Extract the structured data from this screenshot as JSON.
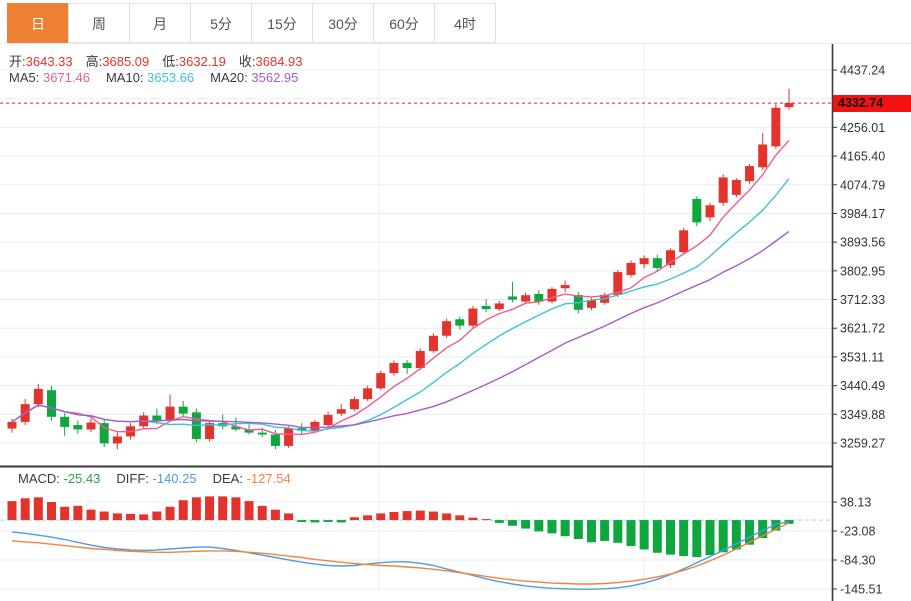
{
  "toolbar": {
    "tabs": [
      {
        "label": "日",
        "active": true
      },
      {
        "label": "周",
        "active": false
      },
      {
        "label": "月",
        "active": false
      },
      {
        "label": "5分",
        "active": false
      },
      {
        "label": "15分",
        "active": false
      },
      {
        "label": "30分",
        "active": false
      },
      {
        "label": "60分",
        "active": false
      },
      {
        "label": "4时",
        "active": false
      }
    ]
  },
  "legend": {
    "ohlc": [
      {
        "label": "开:",
        "value": "3643.33"
      },
      {
        "label": "高:",
        "value": "3685.09"
      },
      {
        "label": "低:",
        "value": "3632.19"
      },
      {
        "label": "收:",
        "value": "3684.93"
      }
    ],
    "ma": [
      {
        "label": "MA5:",
        "value": "3671.46"
      },
      {
        "label": "MA10:",
        "value": "3653.66"
      },
      {
        "label": "MA20:",
        "value": "3562.95"
      }
    ],
    "macd": [
      {
        "label": "MACD:",
        "value": "-25.43"
      },
      {
        "label": "DIFF:",
        "value": "-140.25"
      },
      {
        "label": "DEA:",
        "value": "-127.54"
      }
    ]
  },
  "price_axis": {
    "current_price": "4332.74",
    "ticks_labeled": [
      4437.24,
      4256.01,
      4165.4,
      4074.79,
      3984.17,
      3893.56,
      3802.95,
      3712.33,
      3621.72,
      3531.11,
      3440.49,
      3349.88,
      3259.27
    ],
    "ticks_grid_only": [
      4346.63
    ]
  },
  "macd_axis": {
    "ticks": [
      38.13,
      -23.08,
      -84.3,
      -145.51
    ]
  },
  "chart_data": {
    "type": "candlestick_with_macd",
    "main": {
      "note": "candles as [open, high, low, close], left to right; red = close>=open (CN convention), green = down",
      "ma_periods": [
        5,
        10,
        20
      ],
      "candles": [
        [
          3305,
          3336,
          3292,
          3326
        ],
        [
          3326,
          3398,
          3316,
          3382
        ],
        [
          3382,
          3446,
          3372,
          3430
        ],
        [
          3426,
          3440,
          3330,
          3342
        ],
        [
          3342,
          3354,
          3282,
          3310
        ],
        [
          3316,
          3330,
          3288,
          3302
        ],
        [
          3302,
          3336,
          3294,
          3324
        ],
        [
          3322,
          3332,
          3246,
          3258
        ],
        [
          3258,
          3292,
          3240,
          3280
        ],
        [
          3280,
          3322,
          3270,
          3312
        ],
        [
          3312,
          3356,
          3302,
          3346
        ],
        [
          3346,
          3368,
          3318,
          3330
        ],
        [
          3330,
          3412,
          3326,
          3374
        ],
        [
          3374,
          3392,
          3340,
          3352
        ],
        [
          3356,
          3368,
          3262,
          3272
        ],
        [
          3272,
          3332,
          3264,
          3322
        ],
        [
          3322,
          3350,
          3302,
          3312
        ],
        [
          3312,
          3340,
          3296,
          3302
        ],
        [
          3302,
          3318,
          3286,
          3292
        ],
        [
          3292,
          3308,
          3278,
          3286
        ],
        [
          3286,
          3300,
          3240,
          3250
        ],
        [
          3250,
          3312,
          3244,
          3306
        ],
        [
          3306,
          3322,
          3288,
          3298
        ],
        [
          3298,
          3332,
          3292,
          3326
        ],
        [
          3316,
          3358,
          3310,
          3348
        ],
        [
          3352,
          3382,
          3344,
          3366
        ],
        [
          3366,
          3406,
          3360,
          3398
        ],
        [
          3398,
          3440,
          3392,
          3432
        ],
        [
          3432,
          3488,
          3426,
          3480
        ],
        [
          3480,
          3520,
          3472,
          3512
        ],
        [
          3512,
          3522,
          3478,
          3496
        ],
        [
          3496,
          3558,
          3490,
          3550
        ],
        [
          3550,
          3606,
          3544,
          3598
        ],
        [
          3598,
          3652,
          3592,
          3644
        ],
        [
          3650,
          3658,
          3618,
          3630
        ],
        [
          3630,
          3692,
          3624,
          3684
        ],
        [
          3692,
          3714,
          3672,
          3682
        ],
        [
          3682,
          3708,
          3676,
          3700
        ],
        [
          3722,
          3768,
          3704,
          3712
        ],
        [
          3706,
          3734,
          3700,
          3726
        ],
        [
          3730,
          3742,
          3696,
          3706
        ],
        [
          3706,
          3752,
          3700,
          3746
        ],
        [
          3748,
          3772,
          3736,
          3758
        ],
        [
          3727,
          3736,
          3668,
          3680
        ],
        [
          3686,
          3718,
          3678,
          3711
        ],
        [
          3702,
          3734,
          3696,
          3727
        ],
        [
          3727,
          3806,
          3720,
          3799
        ],
        [
          3790,
          3836,
          3782,
          3828
        ],
        [
          3824,
          3852,
          3810,
          3843
        ],
        [
          3843,
          3854,
          3800,
          3812
        ],
        [
          3821,
          3874,
          3812,
          3868
        ],
        [
          3862,
          3938,
          3854,
          3931
        ],
        [
          4030,
          4038,
          3944,
          3956
        ],
        [
          3972,
          4018,
          3960,
          4010
        ],
        [
          4018,
          4108,
          4008,
          4098
        ],
        [
          4043,
          4096,
          4035,
          4090
        ],
        [
          4086,
          4140,
          4078,
          4134
        ],
        [
          4130,
          4238,
          4122,
          4202
        ],
        [
          4196,
          4330,
          4188,
          4318
        ],
        [
          4320,
          4378,
          4312,
          4332.74
        ]
      ]
    },
    "macd": {
      "hist": [
        40,
        46,
        48,
        38,
        28,
        30,
        22,
        18,
        14,
        13,
        12,
        18,
        28,
        42,
        48,
        50,
        50,
        48,
        40,
        30,
        22,
        14,
        -4,
        -5,
        -4,
        -5,
        6,
        10,
        14,
        17,
        19,
        20,
        18,
        14,
        10,
        5,
        2,
        -6,
        -12,
        -18,
        -24,
        -28,
        -34,
        -40,
        -47,
        -44,
        -48,
        -55,
        -62,
        -69,
        -73,
        -76,
        -78,
        -74,
        -68,
        -62,
        -52,
        -38,
        -22,
        -8
      ],
      "diff": [
        -25,
        -28,
        -32,
        -36,
        -41,
        -47,
        -53,
        -58,
        -61,
        -63,
        -64,
        -63,
        -61,
        -59,
        -57,
        -57,
        -60,
        -64,
        -69,
        -74,
        -79,
        -84,
        -89,
        -93,
        -96,
        -97,
        -96,
        -93,
        -90,
        -88,
        -88,
        -91,
        -96,
        -103,
        -110,
        -117,
        -124,
        -130,
        -135,
        -139,
        -142,
        -144,
        -145,
        -146,
        -146,
        -145,
        -143,
        -139,
        -133,
        -125,
        -115,
        -103,
        -90,
        -77,
        -64,
        -50,
        -36,
        -22,
        -9,
        -3
      ],
      "dea": [
        -44,
        -46,
        -48,
        -51,
        -54,
        -57,
        -60,
        -62,
        -64,
        -66,
        -67,
        -68,
        -68,
        -67,
        -66,
        -65,
        -65,
        -66,
        -68,
        -70,
        -73,
        -76,
        -79,
        -83,
        -86,
        -89,
        -92,
        -94,
        -96,
        -97,
        -99,
        -101,
        -104,
        -107,
        -111,
        -115,
        -119,
        -123,
        -126,
        -129,
        -131,
        -133,
        -134,
        -135,
        -135,
        -134,
        -132,
        -129,
        -125,
        -120,
        -114,
        -106,
        -97,
        -86,
        -74,
        -61,
        -47,
        -33,
        -19,
        -6
      ]
    },
    "colors": {
      "up": "#e2342c",
      "down": "#0fa640",
      "ma5": "#ef5d8f",
      "ma10": "#3ec2d8",
      "ma20": "#a85cc8",
      "diff": "#4f9be4",
      "dea": "#f5823b",
      "grid": "#e7edf4",
      "axis_line": "#3a3a3a",
      "axis_text": "#333333",
      "current_line": "#e82020",
      "zero_dash": "#9fd4ea",
      "badge_bg": "#f21212",
      "accent": "#ee8033"
    },
    "layout_hints": {
      "grid": true,
      "price_axis_side": "right",
      "panels": [
        "candlestick",
        "macd"
      ]
    }
  }
}
